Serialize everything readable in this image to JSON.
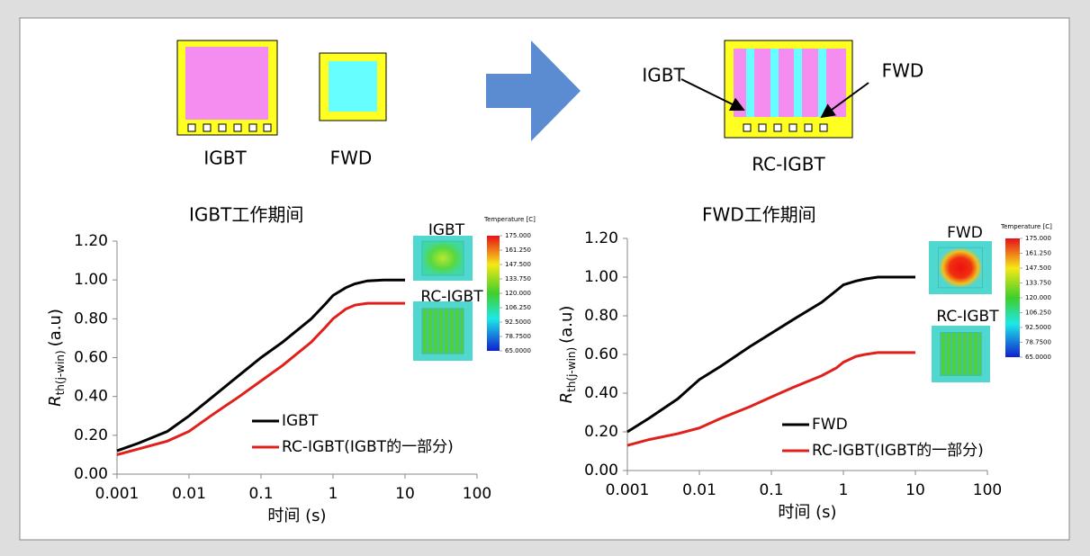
{
  "diagram": {
    "igbt_chip_label": "IGBT",
    "fwd_chip_label": "FWD",
    "rc_chip_label": "RC-IGBT",
    "rc_arrow_igbt": "IGBT",
    "rc_arrow_fwd": "FWD"
  },
  "chart_data": [
    {
      "type": "line",
      "title": "IGBT工作期间",
      "xlabel": "时间 (s)",
      "ylabel": {
        "main": "R",
        "sub": "th(j-win)",
        "unit": "(a.u)"
      },
      "xscale": "log",
      "xlim": [
        0.001,
        100
      ],
      "xticks": [
        0.001,
        0.01,
        0.1,
        1,
        10,
        100
      ],
      "ylim": [
        0,
        1.2
      ],
      "yticks": [
        {
          "value": 0,
          "label": "0.00"
        },
        {
          "value": 0.2,
          "label": "0.20"
        },
        {
          "value": 0.4,
          "label": "0.40"
        },
        {
          "value": 0.6,
          "label": "0.60"
        },
        {
          "value": 0.8,
          "label": "0.80"
        },
        {
          "value": 1.0,
          "label": "1.00"
        },
        {
          "value": 1.2,
          "label": "1.20"
        }
      ],
      "x": [
        0.001,
        0.002,
        0.005,
        0.01,
        0.02,
        0.05,
        0.1,
        0.2,
        0.5,
        0.8,
        1,
        1.5,
        2,
        3,
        5,
        10
      ],
      "series": [
        {
          "name": "IGBT",
          "color": "#000000",
          "values": [
            0.12,
            0.16,
            0.22,
            0.3,
            0.39,
            0.51,
            0.6,
            0.68,
            0.8,
            0.88,
            0.92,
            0.96,
            0.98,
            0.995,
            1.0,
            1.0
          ]
        },
        {
          "name": "RC-IGBT(IGBT的一部分)",
          "color": "#e0201b",
          "values": [
            0.1,
            0.13,
            0.17,
            0.22,
            0.3,
            0.4,
            0.48,
            0.56,
            0.68,
            0.76,
            0.8,
            0.85,
            0.87,
            0.88,
            0.88,
            0.88
          ]
        }
      ],
      "insets": [
        "IGBT",
        "RC-IGBT"
      ],
      "colorbar": {
        "title": "Temperature [C]",
        "clim": [
          65,
          175
        ],
        "ticks": [
          {
            "value": 175,
            "label": "175.000"
          },
          {
            "value": 161.25,
            "label": "161.250"
          },
          {
            "value": 147.5,
            "label": "147.500"
          },
          {
            "value": 133.75,
            "label": "133.750"
          },
          {
            "value": 120,
            "label": "120.000"
          },
          {
            "value": 106.25,
            "label": "106.250"
          },
          {
            "value": 92.5,
            "label": "92.5000"
          },
          {
            "value": 78.75,
            "label": "78.7500"
          },
          {
            "value": 65,
            "label": "65.0000"
          }
        ]
      }
    },
    {
      "type": "line",
      "title": "FWD工作期间",
      "xlabel": "时间 (s)",
      "ylabel": {
        "main": "R",
        "sub": "th(j-win)",
        "unit": "(a.u)"
      },
      "xscale": "log",
      "xlim": [
        0.001,
        100
      ],
      "xticks": [
        0.001,
        0.01,
        0.1,
        1,
        10,
        100
      ],
      "ylim": [
        0,
        1.2
      ],
      "yticks": [
        {
          "value": 0,
          "label": "0.00"
        },
        {
          "value": 0.2,
          "label": "0.20"
        },
        {
          "value": 0.4,
          "label": "0.40"
        },
        {
          "value": 0.6,
          "label": "0.60"
        },
        {
          "value": 0.8,
          "label": "0.80"
        },
        {
          "value": 1.0,
          "label": "1.00"
        },
        {
          "value": 1.2,
          "label": "1.20"
        }
      ],
      "x": [
        0.001,
        0.002,
        0.005,
        0.01,
        0.02,
        0.05,
        0.1,
        0.2,
        0.5,
        0.8,
        1,
        1.5,
        2,
        3,
        5,
        10
      ],
      "series": [
        {
          "name": "FWD",
          "color": "#000000",
          "values": [
            0.2,
            0.27,
            0.37,
            0.47,
            0.54,
            0.64,
            0.71,
            0.78,
            0.87,
            0.93,
            0.96,
            0.98,
            0.99,
            1.0,
            1.0,
            1.0
          ]
        },
        {
          "name": "RC-IGBT(IGBT的一部分)",
          "color": "#e0201b",
          "values": [
            0.13,
            0.16,
            0.19,
            0.22,
            0.27,
            0.33,
            0.38,
            0.43,
            0.49,
            0.53,
            0.56,
            0.59,
            0.6,
            0.61,
            0.61,
            0.61
          ]
        }
      ],
      "insets": [
        "FWD",
        "RC-IGBT"
      ],
      "colorbar": {
        "title": "Temperature [C]",
        "clim": [
          65,
          175
        ],
        "ticks": [
          {
            "value": 175,
            "label": "175.000"
          },
          {
            "value": 161.25,
            "label": "161.250"
          },
          {
            "value": 147.5,
            "label": "147.500"
          },
          {
            "value": 133.75,
            "label": "133.750"
          },
          {
            "value": 120,
            "label": "120.000"
          },
          {
            "value": 106.25,
            "label": "106.250"
          },
          {
            "value": 92.5,
            "label": "92.5000"
          },
          {
            "value": 78.75,
            "label": "78.7500"
          },
          {
            "value": 65,
            "label": "65.0000"
          }
        ]
      }
    }
  ]
}
